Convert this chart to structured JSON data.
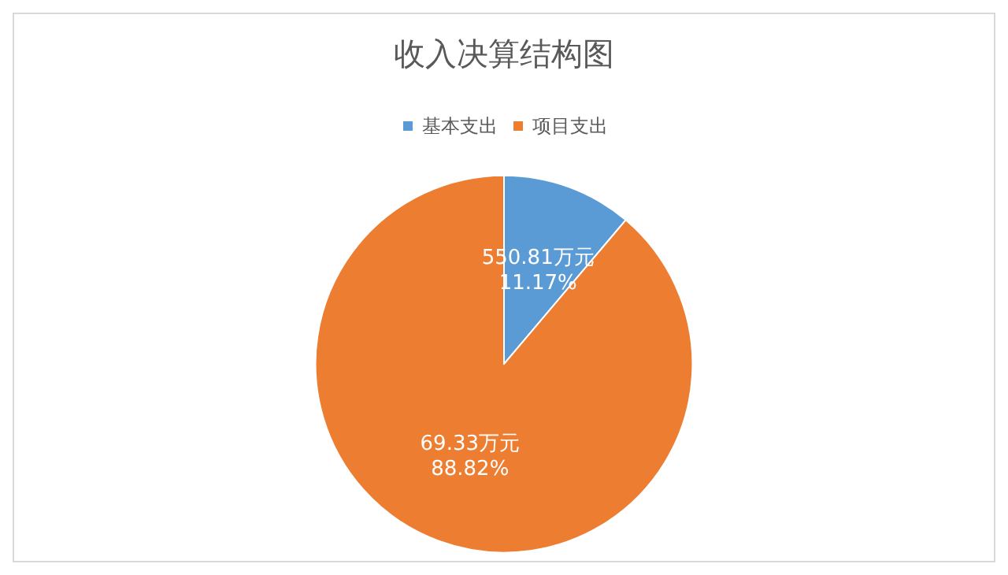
{
  "chart_data": {
    "type": "pie",
    "title": "收入决算结构图",
    "categories": [
      "基本支出",
      "项目支出"
    ],
    "values": [
      11.17,
      88.82
    ],
    "colors": [
      "#5b9bd5",
      "#ed7d31"
    ],
    "value_labels": [
      "550.81万元\n11.17%",
      "69.33万元\n88.82%"
    ],
    "legend": "top"
  }
}
